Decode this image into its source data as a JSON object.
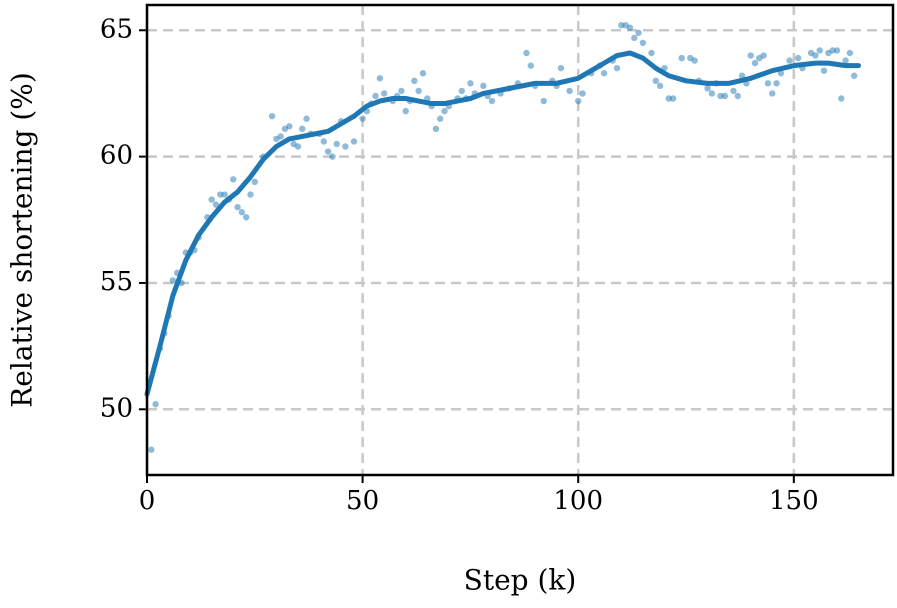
{
  "chart_data": {
    "type": "scatter",
    "xlabel": "Step (k)",
    "ylabel": "Relative shortening (%)",
    "xlim": [
      0,
      173
    ],
    "ylim": [
      47.4,
      66.0
    ],
    "xticks": [
      0,
      50,
      100,
      150
    ],
    "yticks": [
      50,
      55,
      60,
      65
    ],
    "grid": true,
    "series": [
      {
        "mode": "markers",
        "color": "#1f77b4",
        "x": [
          1,
          2,
          3,
          4,
          5,
          6,
          7,
          8,
          9,
          10,
          11,
          12,
          14,
          15,
          16,
          17,
          18,
          19,
          20,
          21,
          22,
          23,
          24,
          25,
          27,
          29,
          30,
          31,
          32,
          33,
          34,
          35,
          36,
          37,
          38,
          40,
          41,
          42,
          43,
          44,
          45,
          46,
          48,
          50,
          51,
          52,
          53,
          54,
          55,
          57,
          58,
          59,
          60,
          61,
          62,
          63,
          64,
          65,
          66,
          67,
          68,
          69,
          70,
          72,
          73,
          74,
          75,
          76,
          78,
          79,
          80,
          82,
          84,
          86,
          88,
          89,
          90,
          92,
          94,
          95,
          96,
          98,
          100,
          101,
          103,
          105,
          106,
          108,
          109,
          110,
          111,
          112,
          113,
          114,
          115,
          117,
          118,
          119,
          120,
          121,
          122,
          124,
          126,
          127,
          128,
          130,
          131,
          132,
          133,
          134,
          136,
          137,
          138,
          139,
          140,
          141,
          142,
          143,
          144,
          145,
          146,
          147,
          149,
          151,
          152,
          154,
          155,
          156,
          157,
          158,
          159,
          160,
          161,
          162,
          163,
          164
        ],
        "values": [
          48.4,
          50.2,
          52.4,
          53.0,
          53.7,
          55.1,
          55.4,
          55.0,
          56.2,
          56.2,
          56.3,
          56.8,
          57.6,
          58.3,
          58.1,
          58.5,
          58.5,
          58.3,
          59.1,
          58.0,
          57.8,
          57.6,
          58.5,
          59.0,
          60.0,
          61.6,
          60.7,
          60.8,
          61.1,
          61.2,
          60.5,
          60.4,
          61.1,
          61.5,
          60.9,
          60.9,
          60.6,
          60.2,
          60.0,
          60.5,
          61.4,
          60.4,
          60.6,
          61.5,
          61.8,
          62.1,
          62.4,
          63.1,
          62.5,
          62.2,
          62.4,
          62.6,
          61.8,
          62.2,
          63.0,
          62.6,
          63.3,
          62.3,
          62.0,
          61.1,
          61.5,
          61.8,
          62.0,
          62.3,
          62.6,
          62.3,
          62.9,
          62.5,
          62.8,
          62.4,
          62.2,
          62.5,
          62.7,
          62.9,
          64.1,
          63.6,
          62.8,
          62.2,
          63.0,
          62.8,
          63.5,
          62.6,
          62.2,
          62.5,
          63.3,
          63.6,
          63.3,
          63.8,
          63.5,
          65.2,
          65.2,
          65.1,
          64.7,
          64.9,
          64.5,
          64.1,
          63.0,
          62.8,
          63.5,
          62.3,
          62.3,
          63.9,
          63.9,
          63.8,
          63.0,
          62.7,
          62.5,
          62.9,
          62.4,
          62.4,
          62.6,
          62.4,
          63.2,
          62.9,
          64.0,
          63.7,
          63.9,
          64.0,
          62.9,
          62.5,
          62.9,
          63.3,
          63.8,
          63.9,
          63.5,
          64.1,
          64.0,
          64.2,
          63.4,
          64.1,
          64.2,
          64.2,
          62.3,
          63.8,
          64.1,
          63.2
        ]
      },
      {
        "mode": "line",
        "color": "#1f77b4",
        "x": [
          0,
          3,
          6,
          9,
          12,
          15,
          18,
          21,
          24,
          27,
          30,
          33,
          36,
          39,
          42,
          45,
          48,
          51,
          54,
          57,
          60,
          63,
          66,
          69,
          72,
          75,
          78,
          81,
          84,
          87,
          90,
          95,
          100,
          103,
          106,
          109,
          112,
          115,
          118,
          121,
          125,
          130,
          135,
          140,
          145,
          150,
          155,
          158,
          162,
          165
        ],
        "values": [
          50.6,
          52.5,
          54.5,
          55.9,
          56.9,
          57.6,
          58.2,
          58.6,
          59.2,
          59.9,
          60.4,
          60.7,
          60.8,
          60.9,
          61.0,
          61.3,
          61.6,
          62.0,
          62.2,
          62.3,
          62.3,
          62.2,
          62.1,
          62.1,
          62.2,
          62.3,
          62.5,
          62.6,
          62.7,
          62.8,
          62.9,
          62.9,
          63.1,
          63.4,
          63.7,
          64.0,
          64.1,
          63.9,
          63.5,
          63.2,
          63.0,
          62.9,
          62.9,
          63.1,
          63.4,
          63.6,
          63.7,
          63.7,
          63.6,
          63.6
        ]
      }
    ]
  }
}
